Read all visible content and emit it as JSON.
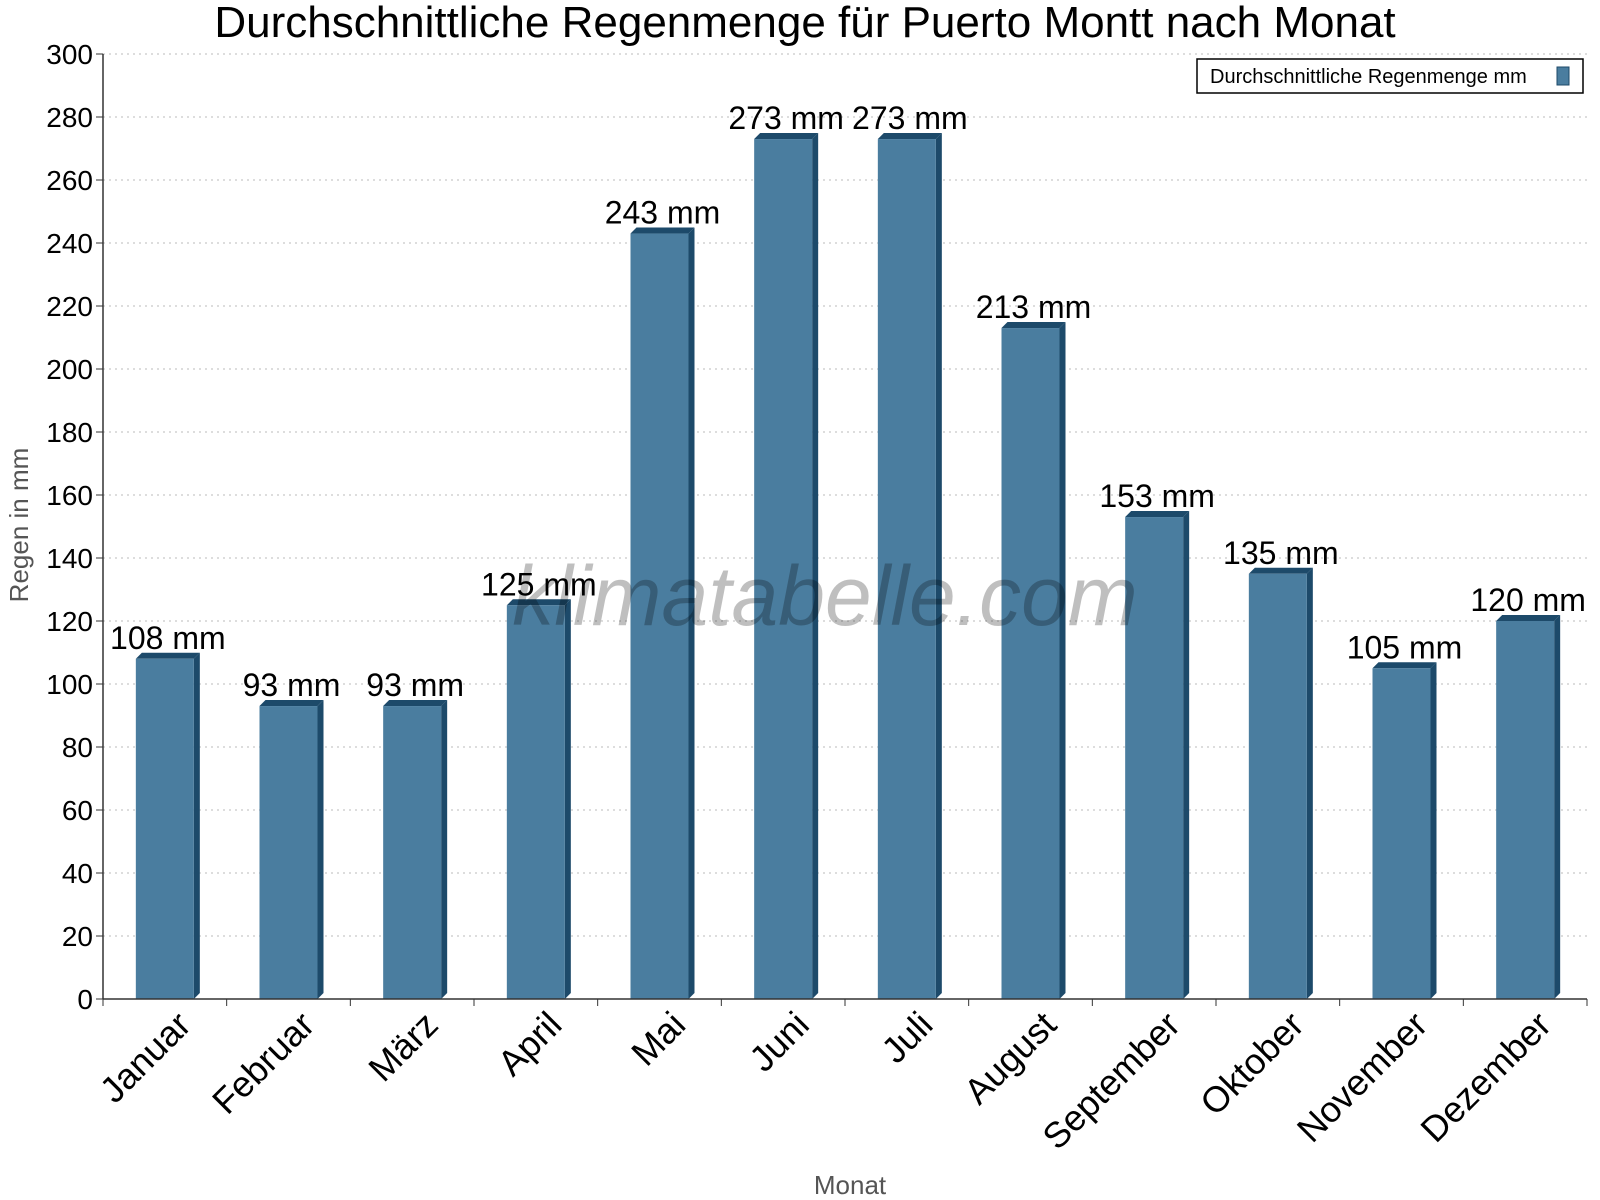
{
  "colors": {
    "bar_front": "#4a7d9f",
    "bar_side": "#1d4a6a",
    "grid": "#bbbbbb",
    "axis": "#333333"
  },
  "watermark": "klimatabelle.com",
  "legend": {
    "position": "top-right",
    "label": "Durchschnittliche Regenmenge mm"
  },
  "chart_data": {
    "type": "bar",
    "title": "Durchschnittliche Regenmenge für Puerto Montt nach Monat",
    "xlabel": "Monat",
    "ylabel": "Regen in mm",
    "ylim": [
      0,
      300
    ],
    "yticks": [
      0,
      20,
      40,
      60,
      80,
      100,
      120,
      140,
      160,
      180,
      200,
      220,
      240,
      260,
      280,
      300
    ],
    "grid": true,
    "categories": [
      "Januar",
      "Februar",
      "März",
      "April",
      "Mai",
      "Juni",
      "Juli",
      "August",
      "September",
      "Oktober",
      "November",
      "Dezember"
    ],
    "series": [
      {
        "name": "Durchschnittliche Regenmenge mm",
        "values": [
          108,
          93,
          93,
          125,
          243,
          273,
          273,
          213,
          153,
          135,
          105,
          120
        ],
        "labels": [
          "108 mm",
          "93 mm",
          "93 mm",
          "125 mm",
          "243 mm",
          "273 mm",
          "273 mm",
          "213 mm",
          "153 mm",
          "135 mm",
          "105 mm",
          "120 mm"
        ]
      }
    ]
  }
}
